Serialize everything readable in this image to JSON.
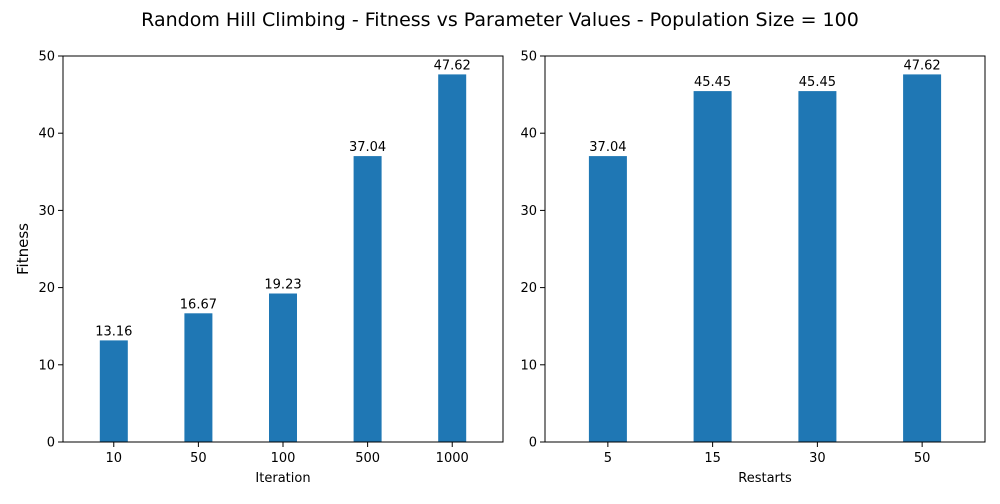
{
  "figure": {
    "title": "Random Hill Climbing - Fitness vs Parameter Values - Population Size = 100"
  },
  "colors": {
    "bar": "#1f77b4",
    "axis": "#000000",
    "background": "#ffffff"
  },
  "chart_data": [
    {
      "type": "bar",
      "categories": [
        "10",
        "50",
        "100",
        "500",
        "1000"
      ],
      "values": [
        13.16,
        16.67,
        19.23,
        37.04,
        47.62
      ],
      "data_labels": [
        "13.16",
        "16.67",
        "19.23",
        "37.04",
        "47.62"
      ],
      "xlabel": "Iteration",
      "ylabel": "Fitness",
      "ylim": [
        0,
        50
      ],
      "yticks": [
        0,
        10,
        20,
        30,
        40,
        50
      ],
      "grid": false
    },
    {
      "type": "bar",
      "categories": [
        "5",
        "15",
        "30",
        "50"
      ],
      "values": [
        37.04,
        45.45,
        45.45,
        47.62
      ],
      "data_labels": [
        "37.04",
        "45.45",
        "45.45",
        "47.62"
      ],
      "xlabel": "Restarts",
      "ylabel": "",
      "ylim": [
        0,
        50
      ],
      "yticks": [
        0,
        10,
        20,
        30,
        40,
        50
      ],
      "grid": false
    }
  ]
}
